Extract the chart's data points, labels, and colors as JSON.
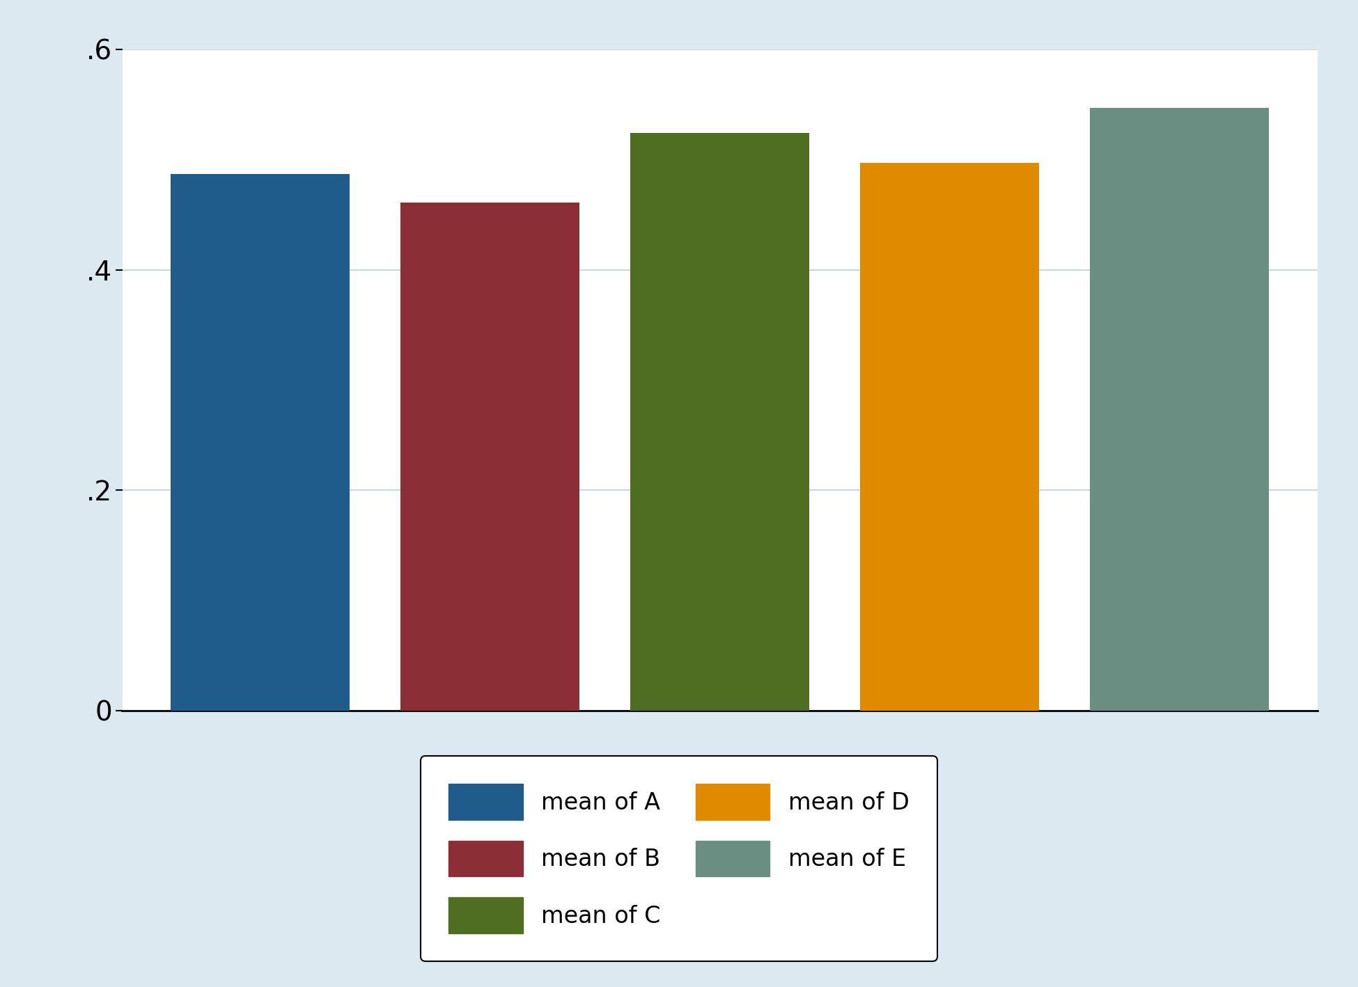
{
  "categories": [
    "A",
    "B",
    "C",
    "D",
    "E"
  ],
  "values": [
    0.487,
    0.461,
    0.524,
    0.497,
    0.547
  ],
  "bar_colors": [
    "#1f5b8b",
    "#8b2e35",
    "#4f6e22",
    "#e08a00",
    "#6b8e82"
  ],
  "legend_labels": [
    "mean of A",
    "mean of B",
    "mean of C",
    "mean of D",
    "mean of E"
  ],
  "ylim": [
    0,
    0.6
  ],
  "yticks": [
    0,
    0.2,
    0.4,
    0.6
  ],
  "ytick_labels": [
    "0",
    ".2",
    ".4",
    ".6"
  ],
  "background_color": "#dce9f0",
  "plot_bg_color": "#ffffff",
  "grid_color": "#c8d8e0",
  "bar_width": 0.78,
  "legend_fontsize": 24,
  "tick_fontsize": 28,
  "ncol_legend": 2
}
